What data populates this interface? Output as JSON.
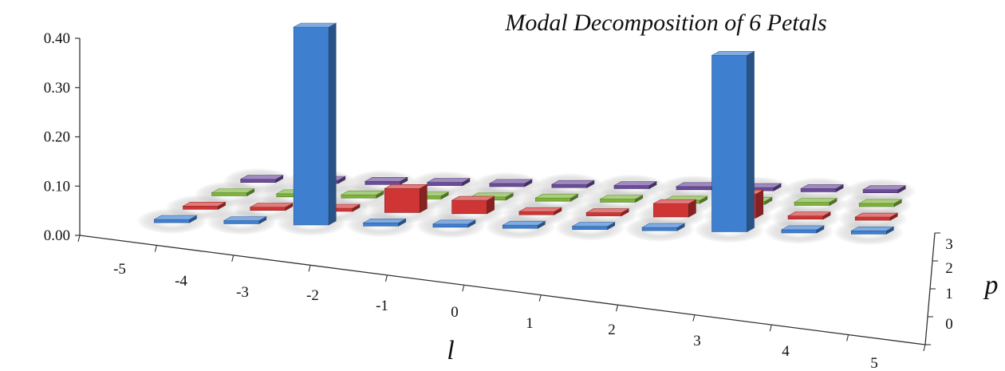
{
  "chart_data": {
    "type": "bar",
    "subtype": "3d-bar-grid",
    "title": "Modal Decomposition of 6 Petals",
    "xlabel": "l",
    "zlabel": "p",
    "ylabel": "",
    "x_categories": [
      "-5",
      "-4",
      "-3",
      "-2",
      "-1",
      "0",
      "1",
      "2",
      "3",
      "4",
      "5"
    ],
    "z_categories": [
      "0",
      "1",
      "2",
      "3"
    ],
    "y_ticks": [
      "0.00",
      "0.10",
      "0.20",
      "0.30",
      "0.40"
    ],
    "ylim": [
      0,
      0.4
    ],
    "grid": false,
    "series": [
      {
        "p": "0",
        "color": "#3f7fd0",
        "values": [
          0.003,
          0.004,
          0.37,
          0.003,
          0.002,
          0.002,
          0.002,
          0.003,
          0.33,
          0.004,
          0.003
        ]
      },
      {
        "p": "1",
        "color": "#cf3535",
        "values": [
          0.003,
          0.003,
          0.004,
          0.045,
          0.025,
          0.002,
          0.002,
          0.025,
          0.045,
          0.003,
          0.003
        ]
      },
      {
        "p": "2",
        "color": "#7cb33a",
        "values": [
          0.002,
          0.002,
          0.003,
          0.006,
          0.002,
          0.002,
          0.002,
          0.002,
          0.006,
          0.002,
          0.002
        ]
      },
      {
        "p": "3",
        "color": "#6b4c9a",
        "values": [
          0.002,
          0.002,
          0.002,
          0.002,
          0.002,
          0.002,
          0.002,
          0.002,
          0.002,
          0.002,
          0.002
        ]
      }
    ]
  }
}
